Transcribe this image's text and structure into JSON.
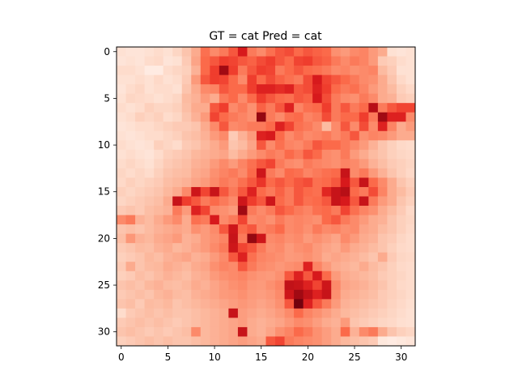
{
  "chart_data": {
    "type": "heatmap",
    "title": "GT = cat Pred = cat",
    "xlabel": "",
    "ylabel": "",
    "rows": 32,
    "cols": 32,
    "colormap": "Reds",
    "value_range": [
      0,
      1
    ],
    "xlim": [
      -0.5,
      31.5
    ],
    "ylim": [
      31.5,
      -0.5
    ],
    "x_ticks": [
      0,
      5,
      10,
      15,
      20,
      25,
      30
    ],
    "y_ticks": [
      0,
      5,
      10,
      15,
      20,
      25,
      30
    ],
    "values": [
      [
        0.12,
        0.1,
        0.1,
        0.12,
        0.14,
        0.12,
        0.16,
        0.22,
        0.3,
        0.48,
        0.4,
        0.45,
        0.55,
        0.75,
        0.45,
        0.4,
        0.48,
        0.55,
        0.58,
        0.5,
        0.55,
        0.52,
        0.5,
        0.38,
        0.35,
        0.4,
        0.42,
        0.35,
        0.3,
        0.12,
        0.1,
        0.12
      ],
      [
        0.1,
        0.12,
        0.1,
        0.14,
        0.15,
        0.1,
        0.12,
        0.2,
        0.32,
        0.5,
        0.55,
        0.62,
        0.6,
        0.55,
        0.52,
        0.58,
        0.62,
        0.55,
        0.5,
        0.6,
        0.62,
        0.55,
        0.52,
        0.45,
        0.4,
        0.45,
        0.42,
        0.35,
        0.2,
        0.18,
        0.14,
        0.12
      ],
      [
        0.14,
        0.14,
        0.12,
        0.06,
        0.06,
        0.14,
        0.16,
        0.18,
        0.28,
        0.5,
        0.62,
        0.9,
        0.62,
        0.45,
        0.55,
        0.62,
        0.6,
        0.45,
        0.5,
        0.55,
        0.5,
        0.48,
        0.45,
        0.4,
        0.42,
        0.38,
        0.4,
        0.42,
        0.25,
        0.2,
        0.12,
        0.12
      ],
      [
        0.12,
        0.12,
        0.14,
        0.12,
        0.15,
        0.12,
        0.14,
        0.2,
        0.35,
        0.55,
        0.62,
        0.6,
        0.5,
        0.4,
        0.62,
        0.5,
        0.58,
        0.52,
        0.48,
        0.45,
        0.58,
        0.75,
        0.6,
        0.55,
        0.5,
        0.45,
        0.4,
        0.38,
        0.3,
        0.22,
        0.15,
        0.12
      ],
      [
        0.1,
        0.14,
        0.16,
        0.12,
        0.14,
        0.14,
        0.12,
        0.22,
        0.3,
        0.4,
        0.42,
        0.55,
        0.5,
        0.5,
        0.62,
        0.72,
        0.72,
        0.68,
        0.72,
        0.55,
        0.58,
        0.72,
        0.62,
        0.5,
        0.45,
        0.48,
        0.42,
        0.35,
        0.3,
        0.25,
        0.18,
        0.15
      ],
      [
        0.12,
        0.16,
        0.15,
        0.14,
        0.12,
        0.14,
        0.16,
        0.25,
        0.28,
        0.35,
        0.3,
        0.45,
        0.5,
        0.4,
        0.5,
        0.62,
        0.55,
        0.5,
        0.48,
        0.55,
        0.52,
        0.75,
        0.58,
        0.45,
        0.4,
        0.38,
        0.45,
        0.4,
        0.3,
        0.28,
        0.2,
        0.18
      ],
      [
        0.14,
        0.12,
        0.14,
        0.18,
        0.16,
        0.16,
        0.18,
        0.24,
        0.3,
        0.3,
        0.55,
        0.62,
        0.4,
        0.45,
        0.38,
        0.52,
        0.45,
        0.55,
        0.72,
        0.42,
        0.48,
        0.5,
        0.62,
        0.45,
        0.55,
        0.45,
        0.5,
        0.85,
        0.45,
        0.55,
        0.6,
        0.6
      ],
      [
        0.12,
        0.14,
        0.18,
        0.16,
        0.18,
        0.14,
        0.16,
        0.22,
        0.28,
        0.35,
        0.6,
        0.5,
        0.45,
        0.42,
        0.38,
        0.92,
        0.45,
        0.4,
        0.48,
        0.5,
        0.42,
        0.45,
        0.58,
        0.45,
        0.5,
        0.5,
        0.62,
        0.45,
        0.9,
        0.72,
        0.72,
        0.4
      ],
      [
        0.1,
        0.12,
        0.14,
        0.14,
        0.16,
        0.18,
        0.2,
        0.2,
        0.22,
        0.3,
        0.4,
        0.55,
        0.4,
        0.42,
        0.45,
        0.45,
        0.5,
        0.72,
        0.6,
        0.48,
        0.45,
        0.4,
        0.25,
        0.4,
        0.55,
        0.4,
        0.58,
        0.4,
        0.72,
        0.42,
        0.3,
        0.35
      ],
      [
        0.12,
        0.1,
        0.12,
        0.14,
        0.14,
        0.16,
        0.18,
        0.22,
        0.24,
        0.28,
        0.35,
        0.4,
        0.2,
        0.28,
        0.35,
        0.72,
        0.75,
        0.5,
        0.4,
        0.45,
        0.4,
        0.42,
        0.45,
        0.4,
        0.45,
        0.55,
        0.38,
        0.42,
        0.4,
        0.35,
        0.3,
        0.3
      ],
      [
        0.14,
        0.12,
        0.1,
        0.12,
        0.18,
        0.16,
        0.14,
        0.2,
        0.22,
        0.26,
        0.3,
        0.35,
        0.22,
        0.25,
        0.32,
        0.55,
        0.4,
        0.48,
        0.42,
        0.4,
        0.45,
        0.55,
        0.5,
        0.5,
        0.45,
        0.4,
        0.35,
        0.28,
        0.22,
        0.18,
        0.15,
        0.14
      ],
      [
        0.12,
        0.14,
        0.12,
        0.1,
        0.14,
        0.18,
        0.2,
        0.22,
        0.26,
        0.28,
        0.3,
        0.32,
        0.25,
        0.3,
        0.35,
        0.4,
        0.45,
        0.42,
        0.5,
        0.45,
        0.55,
        0.5,
        0.4,
        0.38,
        0.45,
        0.35,
        0.3,
        0.25,
        0.22,
        0.18,
        0.16,
        0.15
      ],
      [
        0.14,
        0.16,
        0.14,
        0.12,
        0.16,
        0.2,
        0.22,
        0.24,
        0.28,
        0.3,
        0.35,
        0.4,
        0.35,
        0.42,
        0.48,
        0.55,
        0.6,
        0.45,
        0.4,
        0.38,
        0.45,
        0.42,
        0.4,
        0.38,
        0.42,
        0.4,
        0.35,
        0.28,
        0.24,
        0.2,
        0.18,
        0.16
      ],
      [
        0.16,
        0.14,
        0.16,
        0.14,
        0.18,
        0.22,
        0.24,
        0.25,
        0.3,
        0.32,
        0.38,
        0.42,
        0.45,
        0.4,
        0.5,
        0.78,
        0.45,
        0.4,
        0.5,
        0.48,
        0.42,
        0.45,
        0.48,
        0.5,
        0.8,
        0.4,
        0.45,
        0.35,
        0.28,
        0.22,
        0.18,
        0.15
      ],
      [
        0.15,
        0.18,
        0.16,
        0.18,
        0.2,
        0.24,
        0.26,
        0.28,
        0.32,
        0.35,
        0.4,
        0.45,
        0.42,
        0.48,
        0.55,
        0.65,
        0.5,
        0.55,
        0.5,
        0.55,
        0.58,
        0.48,
        0.5,
        0.55,
        0.75,
        0.55,
        0.8,
        0.5,
        0.4,
        0.3,
        0.22,
        0.18
      ],
      [
        0.18,
        0.16,
        0.18,
        0.2,
        0.22,
        0.26,
        0.3,
        0.4,
        0.78,
        0.6,
        0.8,
        0.55,
        0.45,
        0.55,
        0.72,
        0.5,
        0.45,
        0.52,
        0.45,
        0.55,
        0.5,
        0.48,
        0.7,
        0.8,
        0.85,
        0.5,
        0.45,
        0.58,
        0.42,
        0.3,
        0.25,
        0.2
      ],
      [
        0.16,
        0.18,
        0.2,
        0.22,
        0.24,
        0.3,
        0.8,
        0.62,
        0.55,
        0.45,
        0.5,
        0.45,
        0.4,
        0.78,
        0.62,
        0.55,
        0.78,
        0.5,
        0.45,
        0.55,
        0.48,
        0.5,
        0.55,
        0.8,
        0.75,
        0.55,
        0.8,
        0.45,
        0.35,
        0.3,
        0.22,
        0.18
      ],
      [
        0.2,
        0.22,
        0.2,
        0.24,
        0.26,
        0.28,
        0.45,
        0.35,
        0.72,
        0.6,
        0.4,
        0.38,
        0.35,
        0.9,
        0.45,
        0.4,
        0.45,
        0.55,
        0.5,
        0.45,
        0.42,
        0.48,
        0.5,
        0.45,
        0.6,
        0.48,
        0.42,
        0.38,
        0.3,
        0.25,
        0.2,
        0.15
      ],
      [
        0.4,
        0.45,
        0.28,
        0.25,
        0.3,
        0.35,
        0.4,
        0.3,
        0.48,
        0.45,
        0.75,
        0.4,
        0.45,
        0.6,
        0.4,
        0.42,
        0.38,
        0.45,
        0.4,
        0.42,
        0.4,
        0.38,
        0.5,
        0.55,
        0.45,
        0.4,
        0.35,
        0.3,
        0.28,
        0.22,
        0.18,
        0.16
      ],
      [
        0.22,
        0.24,
        0.22,
        0.25,
        0.28,
        0.3,
        0.32,
        0.3,
        0.38,
        0.35,
        0.4,
        0.55,
        0.78,
        0.5,
        0.55,
        0.42,
        0.45,
        0.5,
        0.4,
        0.42,
        0.38,
        0.45,
        0.4,
        0.42,
        0.38,
        0.4,
        0.32,
        0.3,
        0.25,
        0.22,
        0.18,
        0.15
      ],
      [
        0.24,
        0.36,
        0.28,
        0.26,
        0.3,
        0.32,
        0.35,
        0.28,
        0.3,
        0.35,
        0.38,
        0.42,
        0.8,
        0.45,
        0.92,
        0.78,
        0.4,
        0.42,
        0.38,
        0.4,
        0.35,
        0.38,
        0.35,
        0.32,
        0.4,
        0.35,
        0.3,
        0.28,
        0.22,
        0.2,
        0.16,
        0.14
      ],
      [
        0.2,
        0.22,
        0.25,
        0.24,
        0.28,
        0.3,
        0.26,
        0.28,
        0.32,
        0.35,
        0.4,
        0.45,
        0.78,
        0.6,
        0.55,
        0.45,
        0.38,
        0.4,
        0.35,
        0.38,
        0.4,
        0.35,
        0.32,
        0.3,
        0.35,
        0.3,
        0.28,
        0.25,
        0.22,
        0.18,
        0.15,
        0.14
      ],
      [
        0.18,
        0.2,
        0.22,
        0.26,
        0.24,
        0.28,
        0.3,
        0.32,
        0.28,
        0.3,
        0.35,
        0.4,
        0.55,
        0.72,
        0.48,
        0.42,
        0.4,
        0.38,
        0.35,
        0.36,
        0.38,
        0.35,
        0.3,
        0.32,
        0.3,
        0.28,
        0.25,
        0.22,
        0.3,
        0.2,
        0.16,
        0.15
      ],
      [
        0.2,
        0.3,
        0.22,
        0.25,
        0.26,
        0.3,
        0.28,
        0.26,
        0.3,
        0.32,
        0.38,
        0.42,
        0.4,
        0.55,
        0.45,
        0.4,
        0.38,
        0.36,
        0.38,
        0.4,
        0.72,
        0.42,
        0.35,
        0.3,
        0.28,
        0.26,
        0.3,
        0.25,
        0.22,
        0.18,
        0.15,
        0.14
      ],
      [
        0.18,
        0.2,
        0.24,
        0.22,
        0.25,
        0.28,
        0.26,
        0.24,
        0.28,
        0.3,
        0.35,
        0.38,
        0.4,
        0.42,
        0.38,
        0.36,
        0.35,
        0.38,
        0.55,
        0.72,
        0.55,
        0.75,
        0.5,
        0.35,
        0.3,
        0.28,
        0.26,
        0.24,
        0.2,
        0.18,
        0.16,
        0.14
      ],
      [
        0.22,
        0.24,
        0.22,
        0.26,
        0.28,
        0.25,
        0.24,
        0.26,
        0.3,
        0.28,
        0.32,
        0.35,
        0.38,
        0.4,
        0.36,
        0.35,
        0.38,
        0.42,
        0.82,
        0.8,
        0.72,
        0.6,
        0.78,
        0.4,
        0.32,
        0.3,
        0.28,
        0.25,
        0.22,
        0.18,
        0.15,
        0.14
      ],
      [
        0.2,
        0.22,
        0.24,
        0.22,
        0.26,
        0.28,
        0.25,
        0.24,
        0.28,
        0.3,
        0.32,
        0.35,
        0.36,
        0.38,
        0.35,
        0.34,
        0.36,
        0.4,
        0.78,
        0.9,
        0.82,
        0.72,
        0.8,
        0.38,
        0.3,
        0.28,
        0.26,
        0.24,
        0.2,
        0.18,
        0.16,
        0.14
      ],
      [
        0.22,
        0.24,
        0.2,
        0.25,
        0.24,
        0.26,
        0.22,
        0.24,
        0.26,
        0.28,
        0.3,
        0.32,
        0.34,
        0.36,
        0.34,
        0.32,
        0.34,
        0.38,
        0.55,
        0.98,
        0.72,
        0.55,
        0.45,
        0.35,
        0.28,
        0.26,
        0.24,
        0.22,
        0.2,
        0.17,
        0.15,
        0.13
      ],
      [
        0.14,
        0.2,
        0.22,
        0.24,
        0.22,
        0.24,
        0.22,
        0.22,
        0.24,
        0.26,
        0.28,
        0.3,
        0.8,
        0.34,
        0.32,
        0.3,
        0.32,
        0.35,
        0.4,
        0.5,
        0.42,
        0.38,
        0.34,
        0.3,
        0.26,
        0.24,
        0.22,
        0.2,
        0.18,
        0.16,
        0.14,
        0.12
      ],
      [
        0.2,
        0.22,
        0.24,
        0.22,
        0.24,
        0.22,
        0.2,
        0.22,
        0.24,
        0.26,
        0.28,
        0.3,
        0.32,
        0.34,
        0.3,
        0.28,
        0.3,
        0.32,
        0.36,
        0.4,
        0.38,
        0.34,
        0.3,
        0.28,
        0.35,
        0.22,
        0.2,
        0.18,
        0.16,
        0.15,
        0.13,
        0.12
      ],
      [
        0.22,
        0.24,
        0.22,
        0.2,
        0.22,
        0.2,
        0.22,
        0.24,
        0.4,
        0.26,
        0.28,
        0.3,
        0.32,
        0.8,
        0.3,
        0.28,
        0.32,
        0.38,
        0.42,
        0.5,
        0.45,
        0.38,
        0.34,
        0.3,
        0.5,
        0.28,
        0.4,
        0.45,
        0.3,
        0.22,
        0.18,
        0.16
      ],
      [
        0.18,
        0.2,
        0.22,
        0.24,
        0.22,
        0.24,
        0.22,
        0.22,
        0.24,
        0.26,
        0.28,
        0.3,
        0.32,
        0.34,
        0.32,
        0.3,
        0.55,
        0.6,
        0.45,
        0.42,
        0.4,
        0.38,
        0.34,
        0.3,
        0.26,
        0.24,
        0.22,
        0.2,
        0.08,
        0.06,
        0.08,
        0.1
      ]
    ]
  }
}
